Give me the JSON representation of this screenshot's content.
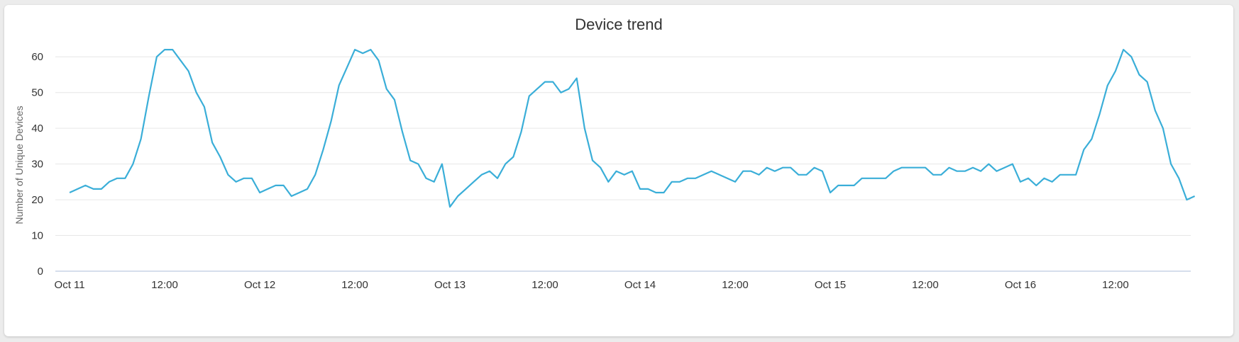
{
  "chart_data": {
    "type": "line",
    "title": "Device trend",
    "xlabel": "",
    "ylabel": "Number of Unique Devices",
    "ylim": [
      0,
      65
    ],
    "yticks": [
      0,
      10,
      20,
      30,
      40,
      50,
      60
    ],
    "xticks": [
      {
        "value": 0,
        "label": "Oct 11"
      },
      {
        "value": 12,
        "label": "12:00"
      },
      {
        "value": 24,
        "label": "Oct 12"
      },
      {
        "value": 36,
        "label": "12:00"
      },
      {
        "value": 48,
        "label": "Oct 13"
      },
      {
        "value": 60,
        "label": "12:00"
      },
      {
        "value": 72,
        "label": "Oct 14"
      },
      {
        "value": 84,
        "label": "12:00"
      },
      {
        "value": 96,
        "label": "Oct 15"
      },
      {
        "value": 108,
        "label": "12:00"
      },
      {
        "value": 120,
        "label": "Oct 16"
      },
      {
        "value": 132,
        "label": "12:00"
      }
    ],
    "xlim": [
      -1.8,
      141.5
    ],
    "x_unit": "hours from Oct 11 00:00",
    "grid": true,
    "line_color": "#3aaed8",
    "series": [
      {
        "name": "",
        "points": [
          [
            0,
            22
          ],
          [
            1,
            23
          ],
          [
            2,
            24
          ],
          [
            3,
            23
          ],
          [
            4,
            23
          ],
          [
            5,
            25
          ],
          [
            6,
            26
          ],
          [
            7,
            26
          ],
          [
            8,
            30
          ],
          [
            9,
            37
          ],
          [
            10,
            49
          ],
          [
            11,
            60
          ],
          [
            12,
            62
          ],
          [
            13,
            62
          ],
          [
            14,
            59
          ],
          [
            15,
            56
          ],
          [
            16,
            50
          ],
          [
            17,
            46
          ],
          [
            18,
            36
          ],
          [
            19,
            32
          ],
          [
            20,
            27
          ],
          [
            21,
            25
          ],
          [
            22,
            26
          ],
          [
            23,
            26
          ],
          [
            24,
            22
          ],
          [
            25,
            23
          ],
          [
            26,
            24
          ],
          [
            27,
            24
          ],
          [
            28,
            21
          ],
          [
            29,
            22
          ],
          [
            30,
            23
          ],
          [
            31,
            27
          ],
          [
            32,
            34
          ],
          [
            33,
            42
          ],
          [
            34,
            52
          ],
          [
            35,
            57
          ],
          [
            36,
            62
          ],
          [
            37,
            61
          ],
          [
            38,
            62
          ],
          [
            39,
            59
          ],
          [
            40,
            51
          ],
          [
            41,
            48
          ],
          [
            42,
            39
          ],
          [
            43,
            31
          ],
          [
            44,
            30
          ],
          [
            45,
            26
          ],
          [
            46,
            25
          ],
          [
            47,
            30
          ],
          [
            48,
            18
          ],
          [
            49,
            21
          ],
          [
            50,
            23
          ],
          [
            51,
            25
          ],
          [
            52,
            27
          ],
          [
            53,
            28
          ],
          [
            54,
            26
          ],
          [
            55,
            30
          ],
          [
            56,
            32
          ],
          [
            57,
            39
          ],
          [
            58,
            49
          ],
          [
            59,
            51
          ],
          [
            60,
            53
          ],
          [
            61,
            53
          ],
          [
            62,
            50
          ],
          [
            63,
            51
          ],
          [
            64,
            54
          ],
          [
            65,
            40
          ],
          [
            66,
            31
          ],
          [
            67,
            29
          ],
          [
            68,
            25
          ],
          [
            69,
            28
          ],
          [
            70,
            27
          ],
          [
            71,
            28
          ],
          [
            72,
            23
          ],
          [
            73,
            23
          ],
          [
            74,
            22
          ],
          [
            75,
            22
          ],
          [
            76,
            25
          ],
          [
            77,
            25
          ],
          [
            78,
            26
          ],
          [
            79,
            26
          ],
          [
            80,
            27
          ],
          [
            81,
            28
          ],
          [
            82,
            27
          ],
          [
            83,
            26
          ],
          [
            84,
            25
          ],
          [
            85,
            28
          ],
          [
            86,
            28
          ],
          [
            87,
            27
          ],
          [
            88,
            29
          ],
          [
            89,
            28
          ],
          [
            90,
            29
          ],
          [
            91,
            29
          ],
          [
            92,
            27
          ],
          [
            93,
            27
          ],
          [
            94,
            29
          ],
          [
            95,
            28
          ],
          [
            96,
            22
          ],
          [
            97,
            24
          ],
          [
            98,
            24
          ],
          [
            99,
            24
          ],
          [
            100,
            26
          ],
          [
            101,
            26
          ],
          [
            102,
            26
          ],
          [
            103,
            26
          ],
          [
            104,
            28
          ],
          [
            105,
            29
          ],
          [
            106,
            29
          ],
          [
            107,
            29
          ],
          [
            108,
            29
          ],
          [
            109,
            27
          ],
          [
            110,
            27
          ],
          [
            111,
            29
          ],
          [
            112,
            28
          ],
          [
            113,
            28
          ],
          [
            114,
            29
          ],
          [
            115,
            28
          ],
          [
            116,
            30
          ],
          [
            117,
            28
          ],
          [
            118,
            29
          ],
          [
            119,
            30
          ],
          [
            120,
            25
          ],
          [
            121,
            26
          ],
          [
            122,
            24
          ],
          [
            123,
            26
          ],
          [
            124,
            25
          ],
          [
            125,
            27
          ],
          [
            126,
            27
          ],
          [
            127,
            27
          ],
          [
            128,
            34
          ],
          [
            129,
            37
          ],
          [
            130,
            44
          ],
          [
            131,
            52
          ],
          [
            132,
            56
          ],
          [
            133,
            62
          ],
          [
            134,
            60
          ],
          [
            135,
            55
          ],
          [
            136,
            53
          ],
          [
            137,
            45
          ],
          [
            138,
            40
          ],
          [
            139,
            30
          ],
          [
            140,
            26
          ],
          [
            141,
            20
          ],
          [
            142,
            21
          ]
        ]
      }
    ]
  }
}
